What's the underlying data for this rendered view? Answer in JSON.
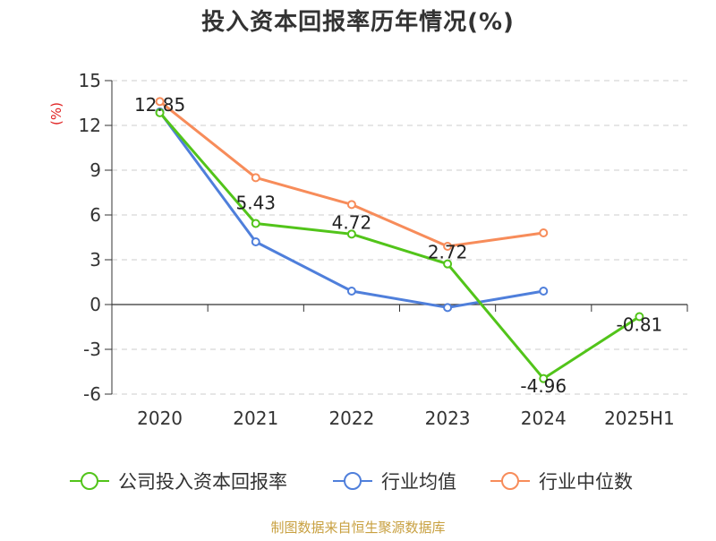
{
  "chart_data": {
    "type": "line",
    "title": "投入资本回报率历年情况(%)",
    "ylabel": "(%)",
    "xlabel": "",
    "categories": [
      "2020",
      "2021",
      "2022",
      "2023",
      "2024",
      "2025H1"
    ],
    "ylim": [
      -6,
      15
    ],
    "yticks": [
      -6,
      -3,
      0,
      3,
      6,
      9,
      12,
      15
    ],
    "grid": "horizontal-dashed",
    "legend_position": "bottom",
    "series": [
      {
        "name": "公司投入资本回报率",
        "color": "#52c41a",
        "values": [
          12.85,
          5.43,
          4.72,
          2.72,
          -4.96,
          -0.81
        ],
        "labels": [
          "12.85",
          "5.43",
          "4.72",
          "2.72",
          "-4.96",
          "-0.81"
        ]
      },
      {
        "name": "行业均值",
        "color": "#4f7fdb",
        "values": [
          12.9,
          4.2,
          0.9,
          -0.2,
          0.9,
          null
        ]
      },
      {
        "name": "行业中位数",
        "color": "#f78c5a",
        "values": [
          13.6,
          8.5,
          6.7,
          3.9,
          4.8,
          null
        ]
      }
    ]
  },
  "source": "制图数据来自恒生聚源数据库",
  "colors": {
    "title": "#333333",
    "axis": "#333333",
    "grid": "#cccccc",
    "ylabel": "#e02020",
    "source": "#c8a040"
  }
}
